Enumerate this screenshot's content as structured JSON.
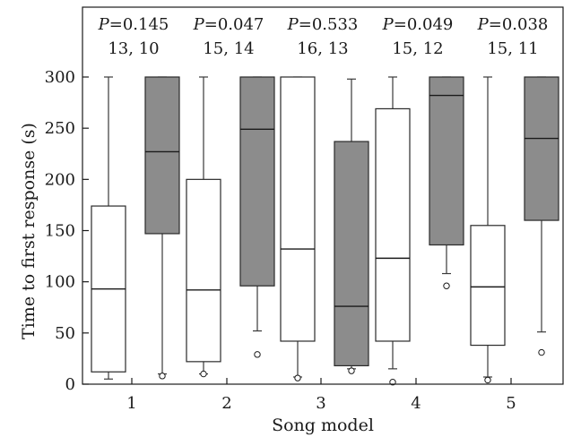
{
  "chart_data": {
    "type": "box",
    "xlabel": "Song model",
    "ylabel": "Time to first response (s)",
    "ylim": [
      0,
      300
    ],
    "yticks": [
      0,
      50,
      100,
      150,
      200,
      250,
      300
    ],
    "grid": false,
    "categories": [
      "1",
      "2",
      "3",
      "4",
      "5"
    ],
    "annotations": [
      {
        "p": "P=0.145",
        "n": "13, 10"
      },
      {
        "p": "P=0.047",
        "n": "15, 14"
      },
      {
        "p": "P=0.533",
        "n": "16, 13"
      },
      {
        "p": "P=0.049",
        "n": "15, 12"
      },
      {
        "p": "P=0.038",
        "n": "15, 11"
      }
    ],
    "series": [
      {
        "color": "#8c8c8c",
        "fill": "#ffffff",
        "boxes": [
          {
            "min": 5,
            "q1": 12,
            "median": 93,
            "q3": 174,
            "max": 300,
            "outliers": []
          },
          {
            "min": 10,
            "q1": 22,
            "median": 92,
            "q3": 200,
            "max": 300,
            "outliers": [
              10
            ]
          },
          {
            "min": 7,
            "q1": 42,
            "median": 132,
            "q3": 300,
            "max": 300,
            "outliers": [
              6
            ]
          },
          {
            "min": 15,
            "q1": 42,
            "median": 123,
            "q3": 269,
            "max": 300,
            "outliers": [
              2
            ]
          },
          {
            "min": 7,
            "q1": 38,
            "median": 95,
            "q3": 155,
            "max": 300,
            "outliers": [
              4
            ]
          }
        ]
      },
      {
        "color": "#8c8c8c",
        "fill": "#8c8c8c",
        "boxes": [
          {
            "min": 10,
            "q1": 147,
            "median": 227,
            "q3": 300,
            "max": 300,
            "outliers": [
              8
            ]
          },
          {
            "min": 52,
            "q1": 96,
            "median": 249,
            "q3": 300,
            "max": 300,
            "outliers": [
              29
            ]
          },
          {
            "min": 15,
            "q1": 18,
            "median": 76,
            "q3": 237,
            "max": 298,
            "outliers": [
              13
            ]
          },
          {
            "min": 108,
            "q1": 136,
            "median": 282,
            "q3": 300,
            "max": 300,
            "outliers": [
              96
            ]
          },
          {
            "min": 51,
            "q1": 160,
            "median": 240,
            "q3": 300,
            "max": 300,
            "outliers": [
              31
            ]
          }
        ]
      }
    ]
  }
}
